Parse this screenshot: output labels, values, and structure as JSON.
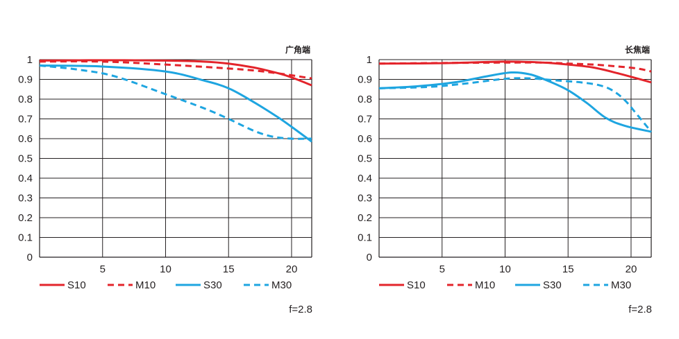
{
  "colors": {
    "red": "#e3242b",
    "blue": "#1ea5e0",
    "grid": "#231f20"
  },
  "chart_data": [
    {
      "type": "line",
      "title": "广角端",
      "aperture_label": "f=2.8",
      "xlim": [
        0,
        21.6
      ],
      "ylim": [
        0,
        1
      ],
      "x_ticks": [
        5,
        10,
        15,
        20
      ],
      "y_ticks": [
        0,
        0.1,
        0.2,
        0.3,
        0.4,
        0.5,
        0.6,
        0.7,
        0.8,
        0.9,
        1
      ],
      "series": [
        {
          "name": "S10",
          "color": "#e3242b",
          "dash": false,
          "points": [
            [
              0,
              0.995
            ],
            [
              5,
              0.997
            ],
            [
              10,
              0.995
            ],
            [
              13,
              0.99
            ],
            [
              15,
              0.98
            ],
            [
              17,
              0.96
            ],
            [
              19,
              0.93
            ],
            [
              20,
              0.91
            ],
            [
              21.6,
              0.87
            ]
          ]
        },
        {
          "name": "M10",
          "color": "#e3242b",
          "dash": true,
          "points": [
            [
              0,
              0.99
            ],
            [
              5,
              0.99
            ],
            [
              10,
              0.975
            ],
            [
              15,
              0.955
            ],
            [
              17,
              0.945
            ],
            [
              19,
              0.93
            ],
            [
              21.6,
              0.905
            ]
          ]
        },
        {
          "name": "S30",
          "color": "#1ea5e0",
          "dash": false,
          "points": [
            [
              0,
              0.97
            ],
            [
              5,
              0.965
            ],
            [
              10,
              0.94
            ],
            [
              13,
              0.895
            ],
            [
              15,
              0.855
            ],
            [
              17,
              0.785
            ],
            [
              19,
              0.705
            ],
            [
              20,
              0.66
            ],
            [
              21.6,
              0.585
            ]
          ]
        },
        {
          "name": "M30",
          "color": "#1ea5e0",
          "dash": true,
          "points": [
            [
              0,
              0.97
            ],
            [
              3,
              0.95
            ],
            [
              6,
              0.915
            ],
            [
              10,
              0.825
            ],
            [
              13,
              0.755
            ],
            [
              15,
              0.7
            ],
            [
              17,
              0.64
            ],
            [
              18.5,
              0.61
            ],
            [
              20,
              0.6
            ],
            [
              21.6,
              0.6
            ]
          ]
        }
      ]
    },
    {
      "type": "line",
      "title": "长焦端",
      "aperture_label": "f=2.8",
      "xlim": [
        0,
        21.6
      ],
      "ylim": [
        0,
        1
      ],
      "x_ticks": [
        5,
        10,
        15,
        20
      ],
      "y_ticks": [
        0,
        0.1,
        0.2,
        0.3,
        0.4,
        0.5,
        0.6,
        0.7,
        0.8,
        0.9,
        1
      ],
      "series": [
        {
          "name": "S10",
          "color": "#e3242b",
          "dash": false,
          "points": [
            [
              0,
              0.98
            ],
            [
              5,
              0.982
            ],
            [
              10,
              0.99
            ],
            [
              13,
              0.985
            ],
            [
              15,
              0.975
            ],
            [
              17,
              0.96
            ],
            [
              19,
              0.93
            ],
            [
              21.6,
              0.885
            ]
          ]
        },
        {
          "name": "M10",
          "color": "#e3242b",
          "dash": true,
          "points": [
            [
              0,
              0.98
            ],
            [
              5,
              0.983
            ],
            [
              10,
              0.985
            ],
            [
              13,
              0.985
            ],
            [
              15,
              0.98
            ],
            [
              17,
              0.975
            ],
            [
              19,
              0.965
            ],
            [
              20.5,
              0.955
            ],
            [
              21.6,
              0.94
            ]
          ]
        },
        {
          "name": "S30",
          "color": "#1ea5e0",
          "dash": false,
          "points": [
            [
              0,
              0.855
            ],
            [
              3,
              0.865
            ],
            [
              6,
              0.885
            ],
            [
              8.5,
              0.915
            ],
            [
              10.5,
              0.935
            ],
            [
              12,
              0.925
            ],
            [
              13.5,
              0.89
            ],
            [
              15,
              0.845
            ],
            [
              16.5,
              0.78
            ],
            [
              18,
              0.705
            ],
            [
              19.5,
              0.665
            ],
            [
              21.6,
              0.635
            ]
          ]
        },
        {
          "name": "M30",
          "color": "#1ea5e0",
          "dash": true,
          "points": [
            [
              0,
              0.855
            ],
            [
              4,
              0.862
            ],
            [
              7,
              0.88
            ],
            [
              10,
              0.903
            ],
            [
              12,
              0.905
            ],
            [
              14,
              0.895
            ],
            [
              16,
              0.885
            ],
            [
              17.5,
              0.87
            ],
            [
              18.5,
              0.845
            ],
            [
              19.5,
              0.795
            ],
            [
              20.5,
              0.72
            ],
            [
              21.6,
              0.635
            ]
          ]
        }
      ]
    }
  ]
}
